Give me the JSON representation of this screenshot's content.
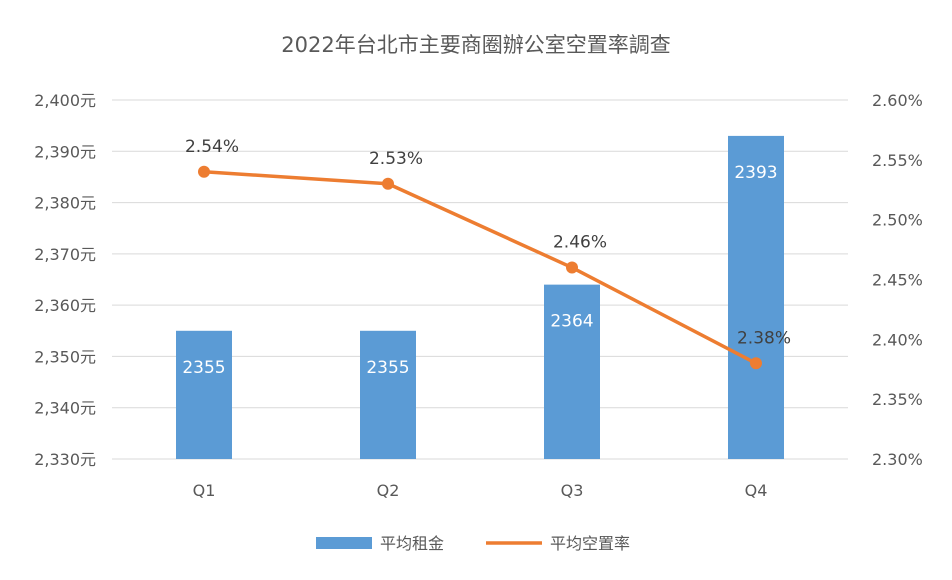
{
  "chart_data": {
    "type": "bar",
    "title": "2022年台北市主要商圈辦公室空置率調查",
    "categories": [
      "Q1",
      "Q2",
      "Q3",
      "Q4"
    ],
    "series": [
      {
        "name": "平均租金",
        "type": "bar",
        "axis": "left",
        "color": "#5B9BD5",
        "values": [
          2355,
          2355,
          2364,
          2393
        ],
        "labels": [
          "2355",
          "2355",
          "2364",
          "2393"
        ]
      },
      {
        "name": "平均空置率",
        "type": "line",
        "axis": "right",
        "color": "#ED7D31",
        "values": [
          2.54,
          2.53,
          2.46,
          2.38
        ],
        "labels": [
          "2.54%",
          "2.53%",
          "2.46%",
          "2.38%"
        ]
      }
    ],
    "y_left": {
      "min": 2330,
      "max": 2400,
      "ticks": [
        2330,
        2340,
        2350,
        2360,
        2370,
        2380,
        2390,
        2400
      ],
      "tick_labels": [
        "2,330元",
        "2,340元",
        "2,350元",
        "2,360元",
        "2,370元",
        "2,380元",
        "2,390元",
        "2,400元"
      ]
    },
    "y_right": {
      "min": 2.3,
      "max": 2.6,
      "ticks": [
        2.3,
        2.35,
        2.4,
        2.45,
        2.5,
        2.55,
        2.6
      ],
      "tick_labels": [
        "2.30%",
        "2.35%",
        "2.40%",
        "2.45%",
        "2.50%",
        "2.55%",
        "2.60%"
      ]
    },
    "grid": true,
    "legend_position": "bottom",
    "xlabel": "",
    "ylabel": ""
  }
}
